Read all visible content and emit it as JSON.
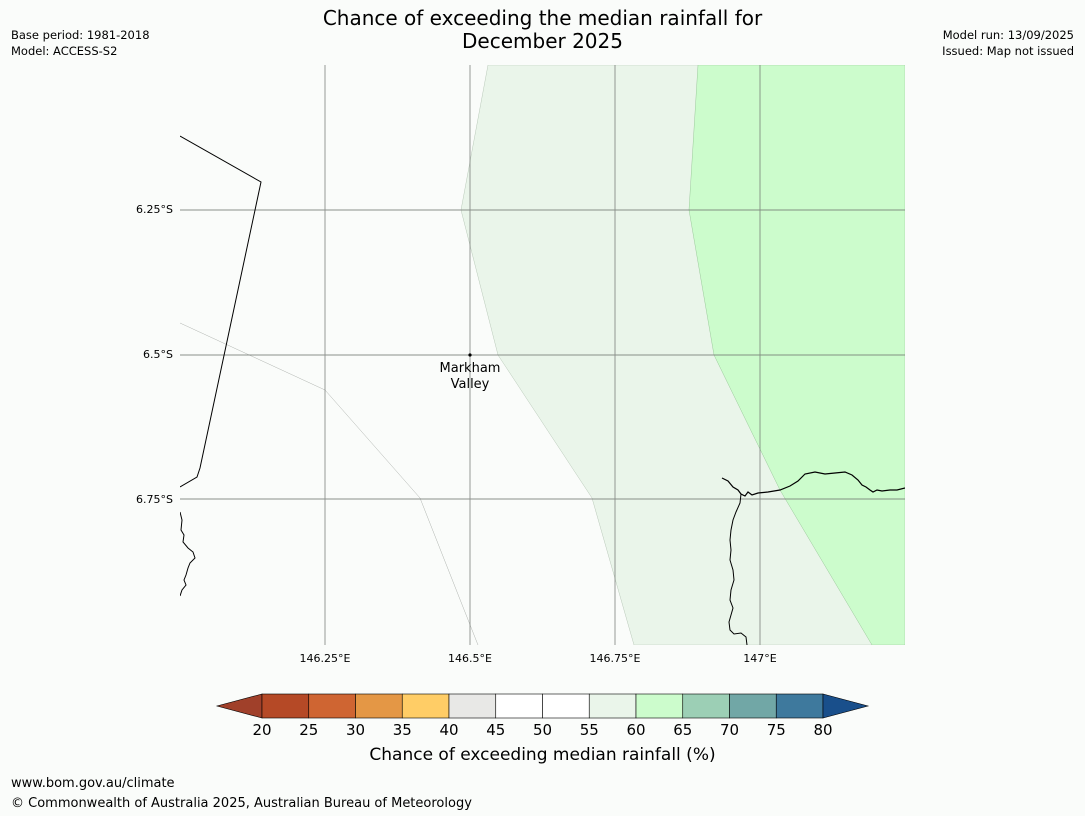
{
  "header": {
    "title_line1": "Chance of exceeding the median rainfall for",
    "title_line2": "December 2025",
    "base_period": "Base period: 1981-2018",
    "model": "Model: ACCESS-S2",
    "model_run": "Model run: 13/09/2025",
    "issued": "Issued: Map not issued"
  },
  "map": {
    "lat_labels": [
      "6.25°S",
      "6.5°S",
      "6.75°S"
    ],
    "lon_labels": [
      "146.25°E",
      "146.5°E",
      "146.75°E",
      "147°E"
    ],
    "place": {
      "name_line1": "Markham",
      "name_line2": "Valley"
    },
    "region_colors": {
      "50-55": "#fafcfa",
      "55-60": "#eaf5ea",
      "60-65": "#ccfccc"
    }
  },
  "colorbar": {
    "label": "Chance of exceeding median rainfall (%)",
    "ticks": [
      "20",
      "25",
      "30",
      "35",
      "40",
      "45",
      "50",
      "55",
      "60",
      "65",
      "70",
      "75",
      "80"
    ],
    "colors": [
      "#a0402a",
      "#b54926",
      "#cf6532",
      "#e49745",
      "#ffcd66",
      "#e8e8e6",
      "#ffffff",
      "#ffffff",
      "#eaf5ea",
      "#ccfccc",
      "#9ccfb5",
      "#71a7a6",
      "#3e799d",
      "#194f8b"
    ]
  },
  "footer": {
    "url": "www.bom.gov.au/climate",
    "copyright": "© Commonwealth of Australia 2025, Australian Bureau of Meteorology"
  }
}
